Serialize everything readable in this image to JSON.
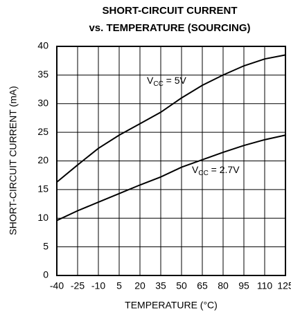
{
  "chart_data": {
    "type": "line",
    "title": [
      "SHORT-CIRCUIT CURRENT",
      "vs. TEMPERATURE (SOURCING)"
    ],
    "xlabel": "TEMPERATURE (°C)",
    "ylabel": "SHORT-CIRCUIT CURRENT (mA)",
    "x": [
      -40,
      -25,
      -10,
      5,
      20,
      35,
      50,
      65,
      80,
      95,
      110,
      125
    ],
    "series": [
      {
        "name": "VCC = 5V",
        "color": "#000000",
        "values": [
          16.3,
          19.3,
          22.2,
          24.5,
          26.5,
          28.5,
          31,
          33.2,
          35,
          36.6,
          37.8,
          38.5
        ]
      },
      {
        "name": "VCC = 2.7V",
        "color": "#000000",
        "values": [
          9.6,
          11.3,
          12.8,
          14.3,
          15.8,
          17.2,
          18.9,
          20.2,
          21.5,
          22.7,
          23.7,
          24.5
        ]
      }
    ],
    "annotations": [
      {
        "main": "V",
        "sub": "CC",
        "rest": " = 5V"
      },
      {
        "main": "V",
        "sub": "CC",
        "rest": " = 2.7V"
      }
    ],
    "xlim": [
      -40,
      125
    ],
    "xticks": [
      -40,
      -25,
      -10,
      5,
      20,
      35,
      50,
      65,
      80,
      95,
      110,
      125
    ],
    "ylim": [
      0,
      40
    ],
    "yticks": [
      0,
      5,
      10,
      15,
      20,
      25,
      30,
      35,
      40
    ],
    "grid": true
  }
}
